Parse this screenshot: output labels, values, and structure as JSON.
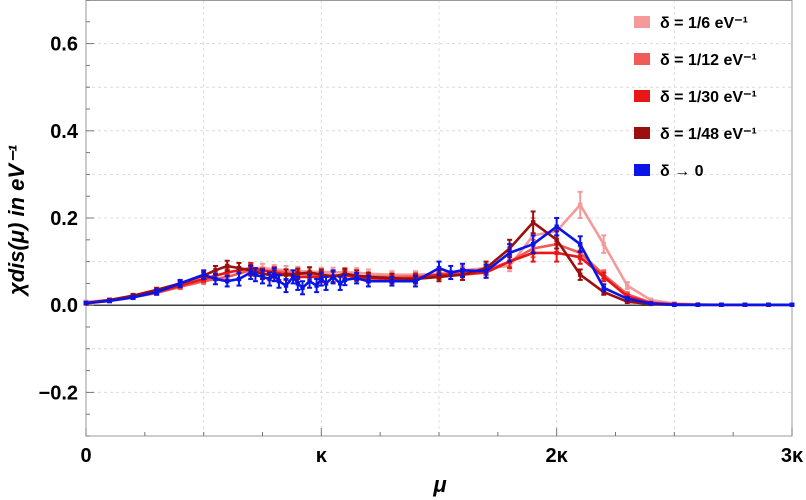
{
  "chart_data": {
    "type": "line",
    "title": "",
    "xlabel": "μ",
    "ylabel": "χdis(μ) in eV⁻¹",
    "xlim": [
      0,
      3
    ],
    "ylim": [
      -0.3,
      0.7
    ],
    "x_ticks": [
      {
        "value": 0,
        "label": "0"
      },
      {
        "value": 1,
        "label": "κ"
      },
      {
        "value": 2,
        "label": "2κ"
      },
      {
        "value": 3,
        "label": "3κ"
      }
    ],
    "y_ticks": [
      {
        "value": -0.2,
        "label": "−0.2"
      },
      {
        "value": 0.0,
        "label": "0.0"
      },
      {
        "value": 0.2,
        "label": "0.2"
      },
      {
        "value": 0.4,
        "label": "0.4"
      },
      {
        "value": 0.6,
        "label": "0.6"
      }
    ],
    "grid": true,
    "legend_position": "top-right",
    "series": [
      {
        "name": "δ = 1/6 eV⁻¹",
        "color": "#f59a9a",
        "x": [
          0,
          0.1,
          0.2,
          0.3,
          0.4,
          0.5,
          0.6,
          0.65,
          0.7,
          0.75,
          0.8,
          0.85,
          0.9,
          0.95,
          1.0,
          1.05,
          1.1,
          1.15,
          1.2,
          1.3,
          1.4,
          1.5,
          1.6,
          1.7,
          1.8,
          1.9,
          2.0,
          2.1,
          2.2,
          2.3,
          2.4,
          2.5,
          2.6,
          2.7,
          2.8,
          2.9,
          3.0
        ],
        "y": [
          0.008,
          0.012,
          0.02,
          0.03,
          0.045,
          0.06,
          0.075,
          0.08,
          0.085,
          0.085,
          0.082,
          0.08,
          0.078,
          0.077,
          0.076,
          0.076,
          0.075,
          0.075,
          0.072,
          0.07,
          0.07,
          0.072,
          0.08,
          0.085,
          0.09,
          0.16,
          0.17,
          0.23,
          0.14,
          0.045,
          0.012,
          0.004,
          0.002,
          0.001,
          0.001,
          0.001,
          0.001
        ],
        "err": [
          0.002,
          0.003,
          0.003,
          0.004,
          0.005,
          0.006,
          0.007,
          0.008,
          0.01,
          0.01,
          0.01,
          0.01,
          0.01,
          0.01,
          0.01,
          0.01,
          0.01,
          0.01,
          0.01,
          0.008,
          0.008,
          0.008,
          0.01,
          0.01,
          0.012,
          0.04,
          0.03,
          0.03,
          0.02,
          0.008,
          0.003,
          0.002,
          0.001,
          0.001,
          0.001,
          0.001,
          0.001
        ]
      },
      {
        "name": "δ = 1/12 eV⁻¹",
        "color": "#f25a5a",
        "x": [
          0,
          0.1,
          0.2,
          0.3,
          0.4,
          0.5,
          0.6,
          0.7,
          0.8,
          0.9,
          1.0,
          1.1,
          1.2,
          1.3,
          1.4,
          1.5,
          1.6,
          1.7,
          1.8,
          1.9,
          2.0,
          2.1,
          2.2,
          2.3,
          2.4,
          2.5,
          2.6,
          2.7,
          2.8,
          2.9,
          3.0
        ],
        "y": [
          0.005,
          0.01,
          0.018,
          0.028,
          0.042,
          0.055,
          0.065,
          0.08,
          0.078,
          0.072,
          0.07,
          0.068,
          0.066,
          0.065,
          0.066,
          0.07,
          0.075,
          0.08,
          0.1,
          0.13,
          0.14,
          0.12,
          0.07,
          0.025,
          0.006,
          0.002,
          0.001,
          0.001,
          0.001,
          0.001,
          0.001
        ],
        "err": [
          0.002,
          0.003,
          0.003,
          0.004,
          0.005,
          0.006,
          0.007,
          0.01,
          0.01,
          0.01,
          0.01,
          0.01,
          0.008,
          0.008,
          0.008,
          0.008,
          0.01,
          0.01,
          0.012,
          0.02,
          0.02,
          0.015,
          0.01,
          0.005,
          0.002,
          0.001,
          0.001,
          0.001,
          0.001,
          0.001,
          0.001
        ]
      },
      {
        "name": "δ = 1/30 eV⁻¹",
        "color": "#e81616",
        "x": [
          0,
          0.1,
          0.2,
          0.3,
          0.4,
          0.5,
          0.6,
          0.7,
          0.8,
          0.9,
          1.0,
          1.1,
          1.2,
          1.3,
          1.4,
          1.5,
          1.6,
          1.7,
          1.8,
          1.9,
          2.0,
          2.1,
          2.2,
          2.3,
          2.4,
          2.5,
          2.6,
          2.7,
          2.8,
          2.9,
          3.0
        ],
        "y": [
          0.004,
          0.01,
          0.02,
          0.03,
          0.045,
          0.06,
          0.075,
          0.085,
          0.075,
          0.065,
          0.065,
          0.068,
          0.062,
          0.06,
          0.062,
          0.07,
          0.07,
          0.075,
          0.1,
          0.12,
          0.12,
          0.11,
          0.065,
          0.02,
          0.005,
          0.002,
          0.001,
          0.001,
          0.001,
          0.001,
          0.001
        ],
        "err": [
          0.002,
          0.003,
          0.003,
          0.004,
          0.005,
          0.006,
          0.007,
          0.012,
          0.012,
          0.012,
          0.012,
          0.012,
          0.01,
          0.01,
          0.01,
          0.01,
          0.012,
          0.012,
          0.015,
          0.02,
          0.02,
          0.015,
          0.01,
          0.005,
          0.002,
          0.001,
          0.001,
          0.001,
          0.001,
          0.001,
          0.001
        ]
      },
      {
        "name": "δ = 1/48 eV⁻¹",
        "color": "#9b0f0f",
        "x": [
          0,
          0.1,
          0.2,
          0.3,
          0.4,
          0.5,
          0.55,
          0.6,
          0.65,
          0.7,
          0.75,
          0.8,
          0.85,
          0.9,
          0.95,
          1.0,
          1.05,
          1.1,
          1.15,
          1.2,
          1.3,
          1.4,
          1.5,
          1.6,
          1.7,
          1.8,
          1.9,
          2.0,
          2.1,
          2.2,
          2.3,
          2.4,
          2.5,
          2.6,
          2.7,
          2.8,
          2.9,
          3.0
        ],
        "y": [
          0.005,
          0.012,
          0.022,
          0.035,
          0.05,
          0.068,
          0.08,
          0.09,
          0.085,
          0.08,
          0.072,
          0.068,
          0.07,
          0.072,
          0.075,
          0.07,
          0.065,
          0.072,
          0.068,
          0.065,
          0.062,
          0.06,
          0.065,
          0.07,
          0.085,
          0.13,
          0.19,
          0.15,
          0.07,
          0.03,
          0.008,
          0.003,
          0.001,
          0.001,
          0.001,
          0.001,
          0.001,
          0.001
        ],
        "err": [
          0.002,
          0.003,
          0.004,
          0.005,
          0.006,
          0.008,
          0.01,
          0.012,
          0.012,
          0.012,
          0.012,
          0.012,
          0.012,
          0.012,
          0.012,
          0.012,
          0.012,
          0.012,
          0.012,
          0.01,
          0.01,
          0.01,
          0.01,
          0.012,
          0.015,
          0.02,
          0.025,
          0.02,
          0.012,
          0.006,
          0.003,
          0.001,
          0.001,
          0.001,
          0.001,
          0.001,
          0.001,
          0.001
        ]
      },
      {
        "name": "δ → 0",
        "color": "#0a14e6",
        "x": [
          0,
          0.1,
          0.2,
          0.3,
          0.4,
          0.5,
          0.55,
          0.6,
          0.65,
          0.7,
          0.72,
          0.75,
          0.78,
          0.8,
          0.82,
          0.85,
          0.88,
          0.9,
          0.92,
          0.95,
          0.98,
          1.0,
          1.02,
          1.05,
          1.08,
          1.1,
          1.15,
          1.2,
          1.3,
          1.4,
          1.5,
          1.55,
          1.6,
          1.7,
          1.8,
          1.9,
          2.0,
          2.1,
          2.2,
          2.3,
          2.4,
          2.5,
          2.6,
          2.7,
          2.8,
          2.9,
          3.0
        ],
        "y": [
          0.005,
          0.01,
          0.018,
          0.03,
          0.05,
          0.07,
          0.06,
          0.055,
          0.06,
          0.075,
          0.07,
          0.065,
          0.06,
          0.07,
          0.055,
          0.045,
          0.065,
          0.05,
          0.04,
          0.055,
          0.045,
          0.06,
          0.05,
          0.065,
          0.05,
          0.058,
          0.062,
          0.055,
          0.055,
          0.055,
          0.085,
          0.075,
          0.08,
          0.078,
          0.12,
          0.14,
          0.18,
          0.14,
          0.04,
          0.015,
          0.004,
          0.001,
          0.001,
          0.001,
          0.001,
          0.001,
          0.001
        ],
        "err": [
          0.002,
          0.003,
          0.004,
          0.006,
          0.008,
          0.01,
          0.012,
          0.012,
          0.015,
          0.015,
          0.015,
          0.015,
          0.015,
          0.015,
          0.015,
          0.015,
          0.015,
          0.015,
          0.015,
          0.015,
          0.015,
          0.015,
          0.015,
          0.015,
          0.015,
          0.012,
          0.012,
          0.012,
          0.01,
          0.012,
          0.015,
          0.015,
          0.015,
          0.015,
          0.02,
          0.02,
          0.02,
          0.018,
          0.008,
          0.004,
          0.002,
          0.001,
          0.001,
          0.001,
          0.001,
          0.001,
          0.001
        ]
      }
    ]
  }
}
